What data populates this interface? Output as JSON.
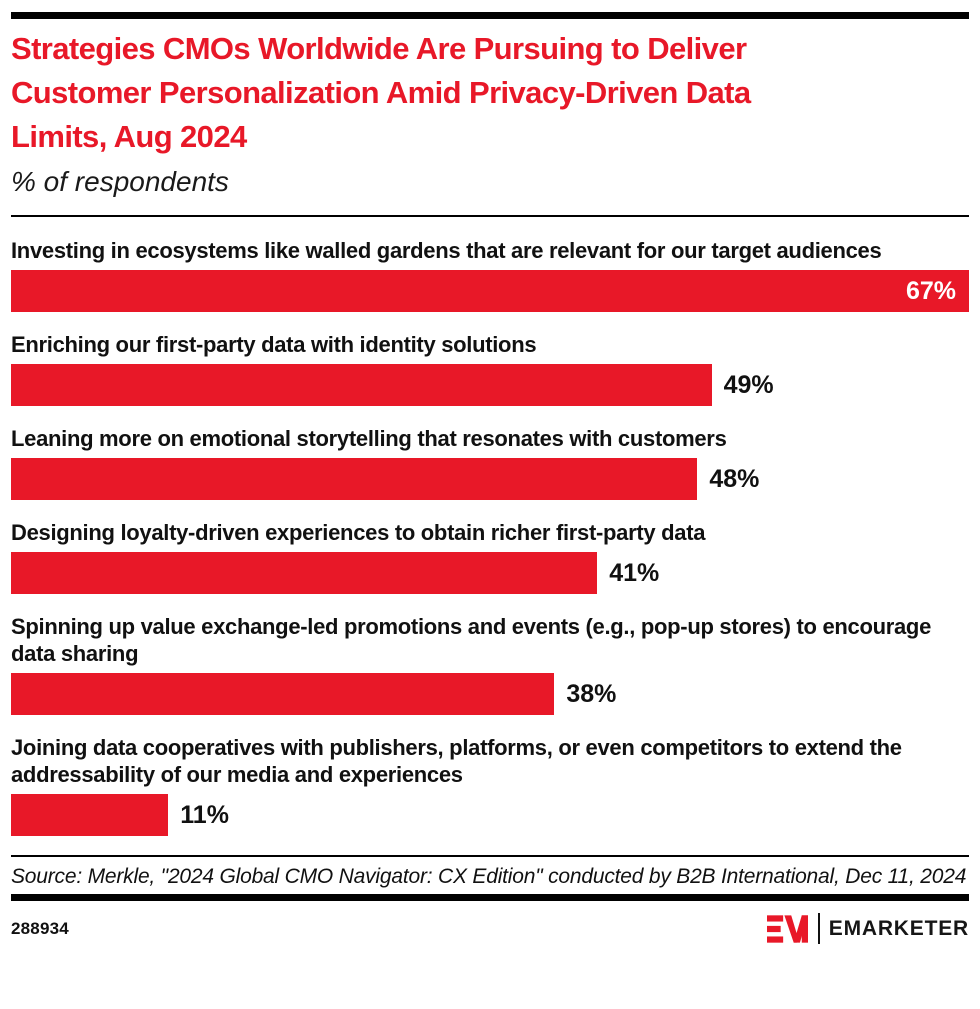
{
  "page": {
    "title": "Strategies CMOs Worldwide Are Pursuing to Deliver Customer Personalization Amid Privacy-Driven Data Limits, Aug 2024",
    "subtitle": "% of respondents"
  },
  "chart_data": {
    "type": "bar",
    "orientation": "horizontal",
    "title": "Strategies CMOs Worldwide Are Pursuing to Deliver Customer Personalization Amid Privacy-Driven Data Limits, Aug 2024",
    "subtitle": "% of respondents",
    "unit": "%",
    "xlim": [
      0,
      67
    ],
    "grid": false,
    "legend": false,
    "categories": [
      "Investing in ecosystems like walled gardens that are relevant for our target audiences",
      "Enriching our first-party data with identity solutions",
      "Leaning more on emotional storytelling that resonates with customers",
      "Designing loyalty-driven experiences to obtain richer first-party data",
      "Spinning up value exchange-led promotions and events (e.g., pop-up stores) to encourage data sharing",
      "Joining data cooperatives with publishers, platforms, or even competitors to extend the addressability of our media and experiences"
    ],
    "values": [
      67,
      49,
      48,
      41,
      38,
      11
    ],
    "value_labels": [
      "67%",
      "49%",
      "48%",
      "41%",
      "38%",
      "11%"
    ],
    "value_label_positions": [
      "inside",
      "outside",
      "outside",
      "outside",
      "outside",
      "outside"
    ],
    "bar_color": "#E81828"
  },
  "source": {
    "text": "Source: Merkle, \"2024 Global CMO Navigator: CX Edition\" conducted by B2B International, Dec 11, 2024"
  },
  "footer": {
    "chart_id": "288934",
    "brand": "EMARKETER",
    "logo_icon": "emarketer-em-logo"
  },
  "colors": {
    "accent_red": "#E81828",
    "text_black": "#111111",
    "value_inside_text": "#FFFFFF",
    "rule_black": "#000000"
  }
}
